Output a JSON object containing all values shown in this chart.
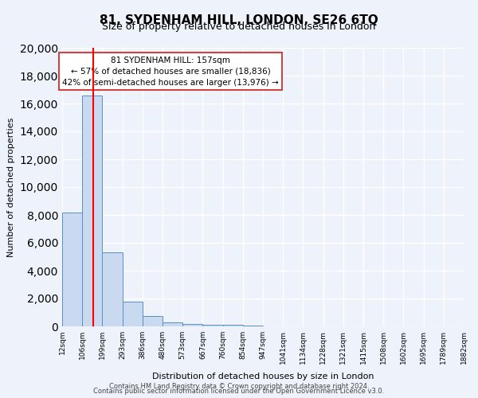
{
  "title": "81, SYDENHAM HILL, LONDON, SE26 6TQ",
  "subtitle": "Size of property relative to detached houses in London",
  "xlabel": "Distribution of detached houses by size in London",
  "ylabel": "Number of detached properties",
  "bin_labels": [
    "12sqm",
    "106sqm",
    "199sqm",
    "293sqm",
    "386sqm",
    "480sqm",
    "573sqm",
    "667sqm",
    "760sqm",
    "854sqm",
    "947sqm",
    "1041sqm",
    "1134sqm",
    "1228sqm",
    "1321sqm",
    "1415sqm",
    "1508sqm",
    "1602sqm",
    "1695sqm",
    "1789sqm",
    "1882sqm"
  ],
  "bar_heights": [
    8200,
    16600,
    5300,
    1750,
    750,
    300,
    180,
    120,
    100,
    70,
    0,
    0,
    0,
    0,
    0,
    0,
    0,
    0,
    0,
    0
  ],
  "bar_color": "#c9d9f0",
  "bar_edge_color": "#5a8fc4",
  "red_line_x": 1,
  "red_line_label": "81 SYDENHAM HILL: 157sqm",
  "annotation_line1": "← 57% of detached houses are smaller (18,836)",
  "annotation_line2": "42% of semi-detached houses are larger (13,976) →",
  "ylim": [
    0,
    20000
  ],
  "yticks": [
    0,
    2000,
    4000,
    6000,
    8000,
    10000,
    12000,
    14000,
    16000,
    18000,
    20000
  ],
  "bg_color": "#eef3fb",
  "plot_bg_color": "#eef3fb",
  "grid_color": "#ffffff",
  "footer_line1": "Contains HM Land Registry data © Crown copyright and database right 2024.",
  "footer_line2": "Contains public sector information licensed under the Open Government Licence v3.0."
}
